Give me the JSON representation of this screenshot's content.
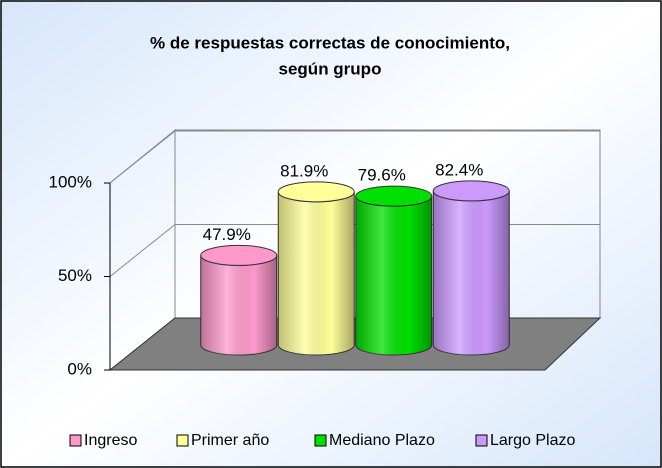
{
  "chart_data": {
    "type": "bar3d",
    "title": [
      "% de respuestas correctas de conocimiento,",
      "según grupo"
    ],
    "series": [
      {
        "name": "Ingreso",
        "color": "#ff99cc",
        "values": [
          47.9
        ],
        "value_labels": [
          "47.9%"
        ]
      },
      {
        "name": "Primer año",
        "color": "#ffff99",
        "values": [
          81.9
        ],
        "value_labels": [
          "81.9%"
        ]
      },
      {
        "name": "Mediano Plazo",
        "color": "#00e000",
        "values": [
          79.6
        ],
        "value_labels": [
          "79.6%"
        ]
      },
      {
        "name": "Largo Plazo",
        "color": "#cc99ff",
        "values": [
          82.4
        ],
        "value_labels": [
          "82.4%"
        ]
      }
    ],
    "ylim": [
      0,
      100
    ],
    "yticks": [
      {
        "value": 0,
        "label": "0%"
      },
      {
        "value": 50,
        "label": "50%"
      },
      {
        "value": 100,
        "label": "100%"
      }
    ],
    "grid": true,
    "legend": "bottom"
  }
}
